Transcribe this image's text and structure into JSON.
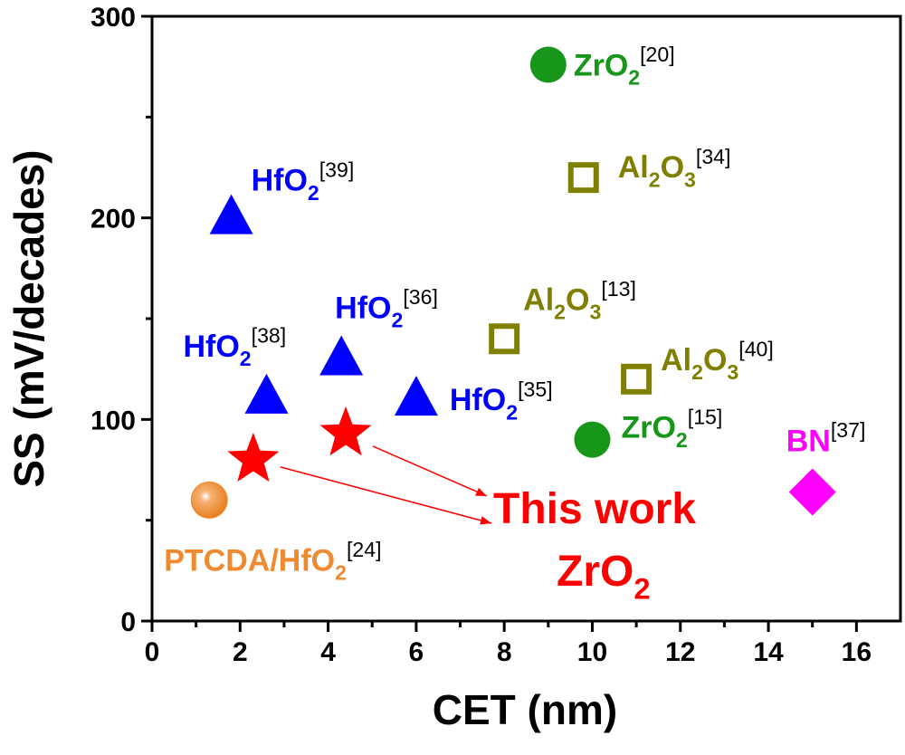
{
  "chart_data": {
    "type": "scatter",
    "x_label": "CET (nm)",
    "y_label": "SS (mV/decades)",
    "xlim": [
      0,
      17
    ],
    "ylim": [
      0,
      300
    ],
    "xticks": [
      0,
      2,
      4,
      6,
      8,
      10,
      12,
      14,
      16
    ],
    "yticks": [
      0,
      100,
      200,
      300
    ],
    "xticks_minor": [
      1,
      3,
      5,
      7,
      9,
      11,
      13,
      15
    ],
    "yticks_minor": [
      50,
      150,
      250
    ],
    "points": [
      {
        "x": 9,
        "y": 276,
        "marker": "circle",
        "color": "#18961a",
        "label": [
          {
            "text": "ZrO"
          },
          {
            "text": "2",
            "baseline": "sub"
          },
          {
            "text": "[20]",
            "baseline": "super"
          }
        ]
      },
      {
        "x": 9.8,
        "y": 220,
        "marker": "open-square",
        "color": "#808000",
        "label": [
          {
            "text": "Al"
          },
          {
            "text": "2",
            "baseline": "sub"
          },
          {
            "text": "O"
          },
          {
            "text": "3",
            "baseline": "sub"
          },
          {
            "text": "[34]",
            "baseline": "super"
          }
        ]
      },
      {
        "x": 1.8,
        "y": 200,
        "marker": "triangle",
        "color": "#0000ff",
        "label": [
          {
            "text": "HfO"
          },
          {
            "text": "2",
            "baseline": "sub"
          },
          {
            "text": "[39]",
            "baseline": "super"
          }
        ]
      },
      {
        "x": 4.3,
        "y": 130,
        "marker": "triangle",
        "color": "#0000ff",
        "label": [
          {
            "text": "HfO"
          },
          {
            "text": "2",
            "baseline": "sub"
          },
          {
            "text": "[36]",
            "baseline": "super"
          }
        ]
      },
      {
        "x": 8,
        "y": 140,
        "marker": "open-square",
        "color": "#808000",
        "label": [
          {
            "text": "Al"
          },
          {
            "text": "2",
            "baseline": "sub"
          },
          {
            "text": "O"
          },
          {
            "text": "3",
            "baseline": "sub"
          },
          {
            "text": "[13]",
            "baseline": "super"
          }
        ]
      },
      {
        "x": 2.6,
        "y": 111,
        "marker": "triangle",
        "color": "#0000ff",
        "label": [
          {
            "text": "HfO"
          },
          {
            "text": "2",
            "baseline": "sub"
          },
          {
            "text": "[38]",
            "baseline": "super"
          }
        ]
      },
      {
        "x": 6,
        "y": 110,
        "marker": "triangle",
        "color": "#0000ff",
        "label": [
          {
            "text": "HfO"
          },
          {
            "text": "2",
            "baseline": "sub"
          },
          {
            "text": "[35]",
            "baseline": "super"
          }
        ]
      },
      {
        "x": 11,
        "y": 120,
        "marker": "open-square",
        "color": "#808000",
        "label": [
          {
            "text": "Al"
          },
          {
            "text": "2",
            "baseline": "sub"
          },
          {
            "text": "O"
          },
          {
            "text": "3",
            "baseline": "sub"
          },
          {
            "text": "[40]",
            "baseline": "super"
          }
        ]
      },
      {
        "x": 10,
        "y": 90,
        "marker": "circle",
        "color": "#18961a",
        "label": [
          {
            "text": "ZrO"
          },
          {
            "text": "2",
            "baseline": "sub"
          },
          {
            "text": "[15]",
            "baseline": "super"
          }
        ]
      },
      {
        "x": 15,
        "y": 64,
        "marker": "diamond",
        "color": "#ff00ff",
        "label": [
          {
            "text": "BN"
          },
          {
            "text": "[37]",
            "baseline": "super"
          }
        ]
      },
      {
        "x": 1.3,
        "y": 60,
        "marker": "sphere",
        "color": "#f08a30",
        "label": [
          {
            "text": "PTCDA/HfO"
          },
          {
            "text": "2",
            "baseline": "sub"
          },
          {
            "text": "[24]",
            "baseline": "super"
          }
        ]
      },
      {
        "x": 2.3,
        "y": 80,
        "marker": "star",
        "color": "#ff0000"
      },
      {
        "x": 4.4,
        "y": 93,
        "marker": "star",
        "color": "#ff0000"
      }
    ],
    "annotation": {
      "color": "#ff0000",
      "lines": [
        [
          {
            "text": "This work"
          }
        ],
        [
          {
            "text": "ZrO"
          },
          {
            "text": "2",
            "baseline": "sub"
          }
        ]
      ]
    }
  }
}
